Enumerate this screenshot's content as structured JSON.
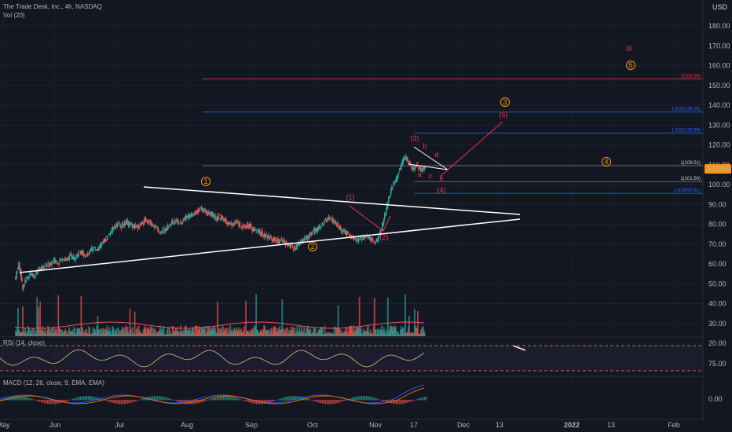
{
  "header": {
    "symbol_line": "The Trade Desk, Inc., 4h, NASDAQ",
    "volume_label": "Vol (20)",
    "currency": "USD"
  },
  "rsi": {
    "label": "RSI (14, close)",
    "level_label": "75.00"
  },
  "macd": {
    "label": "MACD (12, 26, close, 9, EMA, EMA)",
    "level_label": "0.00"
  },
  "price_badge": {
    "value": "107.90",
    "color": "#f7931a"
  },
  "colors": {
    "up": "#26a69a",
    "down": "#ef5350",
    "wave_orange": "#ff9800",
    "wave_red": "#f23645",
    "fib_blue": "#2962ff",
    "trend": "#ffffff"
  },
  "chart_data": {
    "type": "candlestick",
    "y_axis_ticks": [
      20,
      30,
      40,
      50,
      60,
      70,
      80,
      90,
      100,
      110,
      120,
      130,
      140,
      150,
      160,
      170,
      180
    ],
    "y_range": [
      15,
      190
    ],
    "x_tick_labels": [
      "May",
      "Jun",
      "Jul",
      "Aug",
      "Sep",
      "Oct",
      "Nov",
      "17",
      "Dec",
      "13",
      "2022",
      "13",
      "Feb"
    ],
    "price_series": [
      52,
      60,
      48,
      53,
      55,
      54,
      57,
      58,
      60,
      59,
      62,
      61,
      63,
      62,
      64,
      63,
      65,
      66,
      64,
      66,
      68,
      67,
      70,
      72,
      75,
      78,
      80,
      79,
      81,
      80,
      79,
      78,
      80,
      82,
      81,
      79,
      78,
      76,
      77,
      79,
      81,
      82,
      80,
      83,
      84,
      85,
      86,
      88,
      87,
      86,
      85,
      83,
      84,
      82,
      81,
      80,
      81,
      80,
      79,
      80,
      78,
      77,
      76,
      75,
      74,
      73,
      72,
      71,
      72,
      70,
      69,
      68,
      70,
      72,
      73,
      75,
      77,
      78,
      80,
      82,
      83,
      81,
      79,
      77,
      76,
      74,
      73,
      72,
      73,
      74,
      73,
      71,
      72,
      78,
      86,
      95,
      100,
      104,
      110,
      114,
      111,
      108,
      110,
      107,
      108
    ],
    "price_level_lines": [
      {
        "label": "1(153.28)",
        "value": 153.28,
        "color": "#f23645"
      },
      {
        "label": "1.618(136.56)",
        "value": 136.56,
        "color": "#2962ff"
      },
      {
        "label": "1.618(125.99)",
        "value": 125.99,
        "color": "#2962ff"
      },
      {
        "label": "1(109.51)",
        "value": 109.51,
        "color": "#787b86"
      },
      {
        "label": "1(101.50)",
        "value": 101.5,
        "color": "#787b86"
      },
      {
        "label": "1.618(95.61)",
        "value": 95.61,
        "color": "#2962ff"
      }
    ],
    "wave_labels": [
      {
        "text": "III",
        "color": "#f23645"
      },
      {
        "text": "5",
        "color": "#ff9800"
      },
      {
        "text": "3",
        "color": "#ff9800"
      },
      {
        "text": "(5)",
        "color": "#f23645"
      },
      {
        "text": "4",
        "color": "#ff9800"
      },
      {
        "text": "(3)",
        "color": "#f23645"
      },
      {
        "text": "b",
        "color": "#f23645"
      },
      {
        "text": "d",
        "color": "#f23645"
      },
      {
        "text": "a",
        "color": "#f23645"
      },
      {
        "text": "c",
        "color": "#f23645"
      },
      {
        "text": "e",
        "color": "#f23645"
      },
      {
        "text": "(4)",
        "color": "#f23645"
      },
      {
        "text": "1",
        "color": "#ff9800"
      },
      {
        "text": "(1)",
        "color": "#f23645"
      },
      {
        "text": "2",
        "color": "#ff9800"
      },
      {
        "text": "(2)",
        "color": "#f23645"
      }
    ],
    "current_price": 107.9
  }
}
